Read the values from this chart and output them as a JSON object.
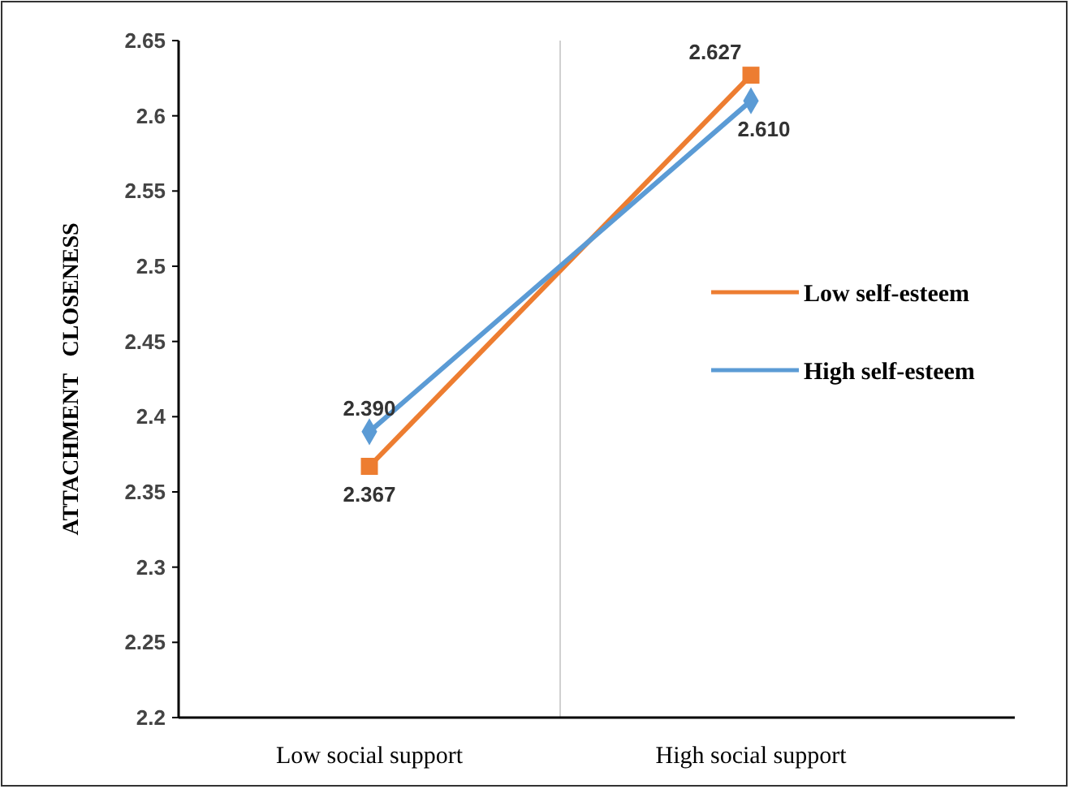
{
  "chart_data": {
    "type": "line",
    "ylabel": "ATTACHMENT   CLOSENESS",
    "categories": [
      "Low social support",
      "High social support"
    ],
    "series": [
      {
        "name": "Low self-esteem",
        "color": "#ed7d31",
        "marker": "square",
        "values": [
          2.367,
          2.627
        ],
        "value_labels": [
          "2.367",
          "2.627"
        ]
      },
      {
        "name": "High self-esteem",
        "color": "#5b9bd5",
        "marker": "diamond",
        "values": [
          2.39,
          2.61
        ],
        "value_labels": [
          "2.390",
          "2.610"
        ]
      }
    ],
    "ylim": [
      2.2,
      2.65
    ],
    "yticks": [
      2.2,
      2.25,
      2.3,
      2.35,
      2.4,
      2.45,
      2.5,
      2.55,
      2.6,
      2.65
    ],
    "legend": "right"
  }
}
